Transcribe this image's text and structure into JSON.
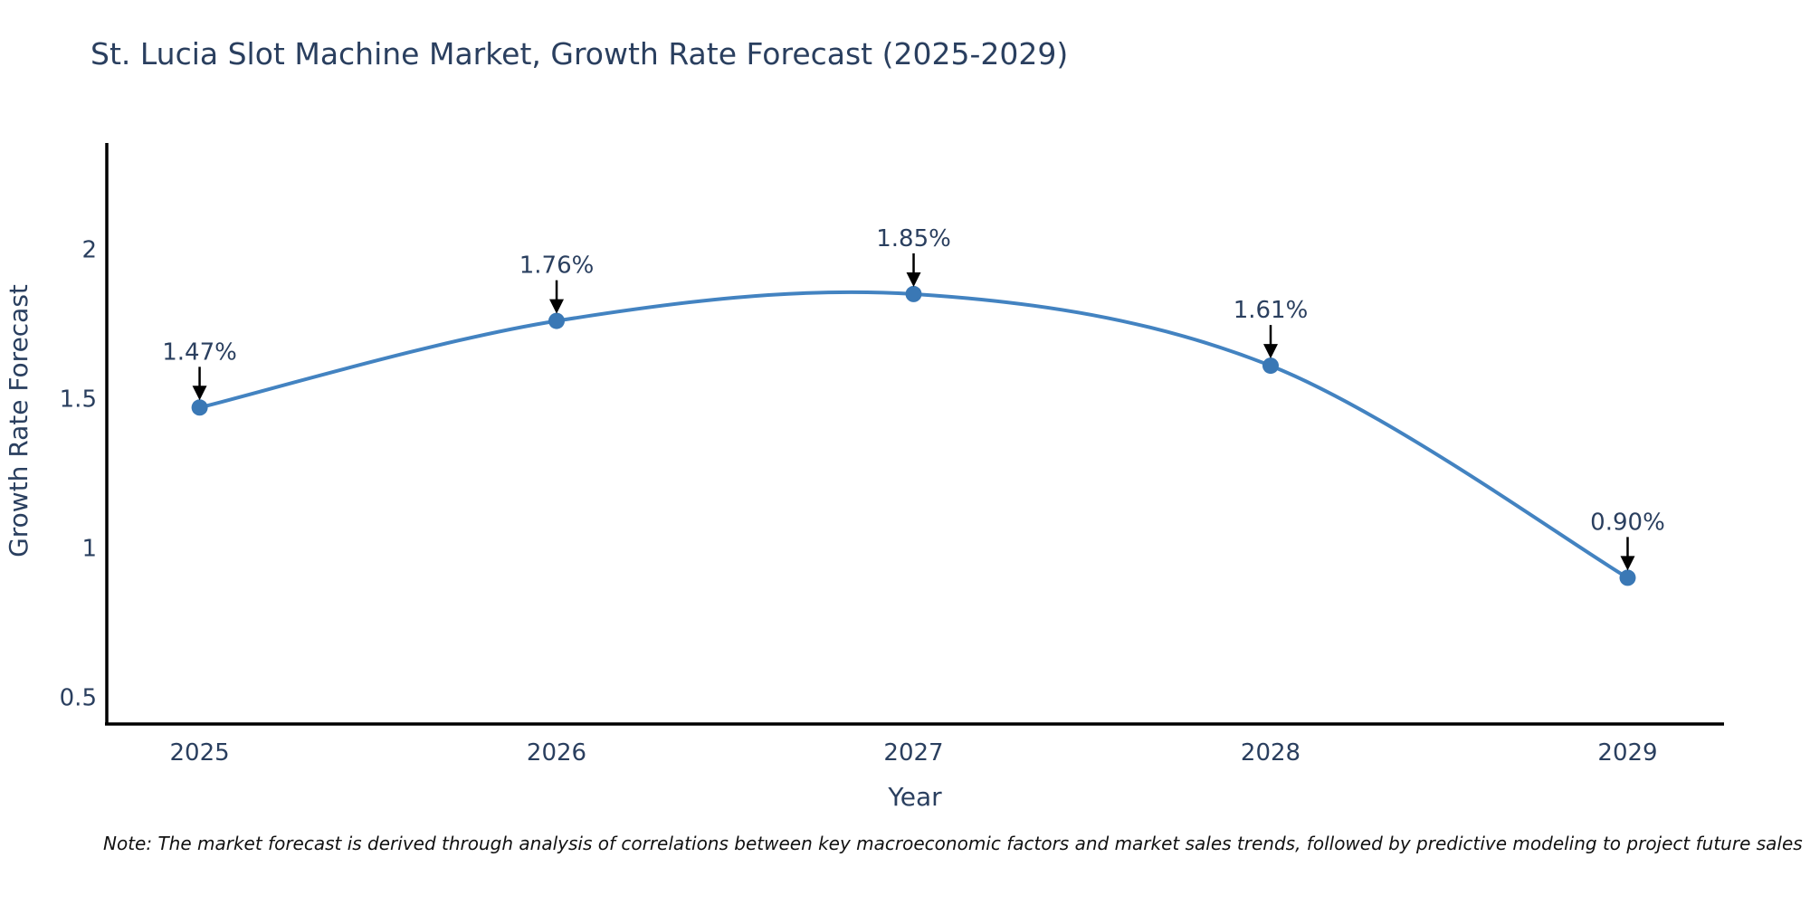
{
  "note": "Note: The market forecast is derived through analysis of correlations between key macroeconomic factors and market sales trends, followed by predictive modeling to project future sales",
  "chart_data": {
    "type": "line",
    "title": "St. Lucia Slot Machine Market, Growth Rate Forecast (2025-2029)",
    "xlabel": "Year",
    "ylabel": "Growth Rate Forecast",
    "x": [
      2025,
      2026,
      2027,
      2028,
      2029
    ],
    "values": [
      1.47,
      1.76,
      1.85,
      1.61,
      0.9
    ],
    "point_labels": [
      "1.47%",
      "1.76%",
      "1.85%",
      "1.61%",
      "0.90%"
    ],
    "xtick_labels": [
      "2025",
      "2026",
      "2027",
      "2028",
      "2029"
    ],
    "yticks": [
      0.5,
      1,
      1.5,
      2
    ],
    "ytick_labels": [
      "0.5",
      "1",
      "1.5",
      "2"
    ],
    "xlim": [
      2024.74,
      2029.27
    ],
    "ylim": [
      0.41,
      2.35
    ],
    "grid": false,
    "legend_position": "none",
    "line_color": "#4383c1",
    "marker_color": "#3a78b5",
    "arrow_color": "#000000",
    "axis_color": "#000000",
    "text_color": "#2a3f5f"
  }
}
